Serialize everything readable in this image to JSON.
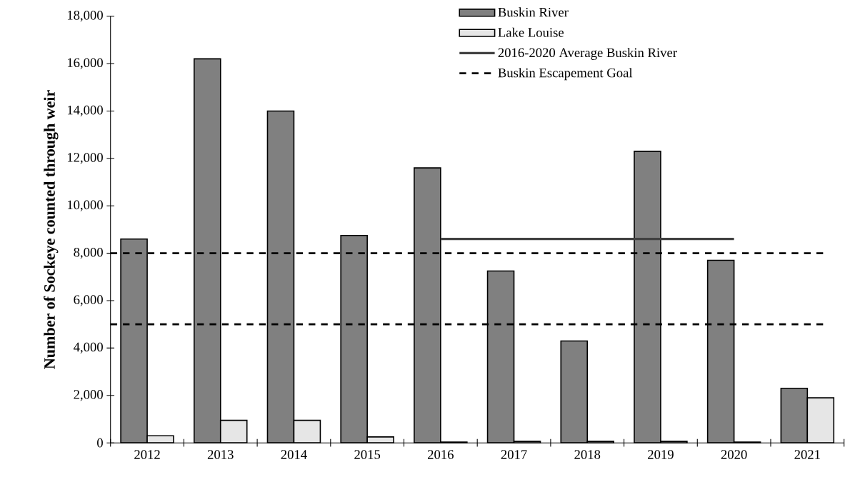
{
  "chart_data": {
    "type": "bar",
    "ylabel": "Number of Sockeye counted through weir",
    "categories": [
      "2012",
      "2013",
      "2014",
      "2015",
      "2016",
      "2017",
      "2018",
      "2019",
      "2020",
      "2021"
    ],
    "series": [
      {
        "name": "Buskin River",
        "color": "#808080",
        "values": [
          8600,
          16200,
          14000,
          8750,
          11600,
          7250,
          4300,
          12300,
          7700,
          2300
        ]
      },
      {
        "name": "Lake Louise",
        "color": "#e6e6e6",
        "values": [
          300,
          950,
          950,
          250,
          30,
          60,
          60,
          60,
          30,
          1900
        ]
      },
      {
        "name": "2016-2020 Average Buskin River",
        "type": "line",
        "color": "#404040",
        "values": [
          null,
          null,
          null,
          null,
          8600,
          8600,
          8600,
          8600,
          8600,
          null
        ]
      }
    ],
    "ref_lines": [
      {
        "axis": "y",
        "value": 8000,
        "label": "Buskin Escapement Goal",
        "color": "#000000",
        "line_style": "dashed"
      },
      {
        "axis": "y",
        "value": 5000,
        "color": "#000000",
        "line_style": "dashed"
      }
    ],
    "ylim": [
      0,
      18000
    ],
    "yticks": [
      0,
      {
        "value": 2000,
        "label": "2,000"
      },
      {
        "value": 4000,
        "label": "4,000"
      },
      {
        "value": 6000,
        "label": "6,000"
      },
      {
        "value": 8000,
        "label": "8,000"
      },
      {
        "value": 10000,
        "label": "10,000"
      },
      {
        "value": 12000,
        "label": "12,000"
      },
      {
        "value": 14000,
        "label": "14,000"
      },
      {
        "value": 16000,
        "label": "16,000"
      },
      {
        "value": 18000,
        "label": "18,000"
      }
    ],
    "grid": false,
    "legend": "top right"
  }
}
